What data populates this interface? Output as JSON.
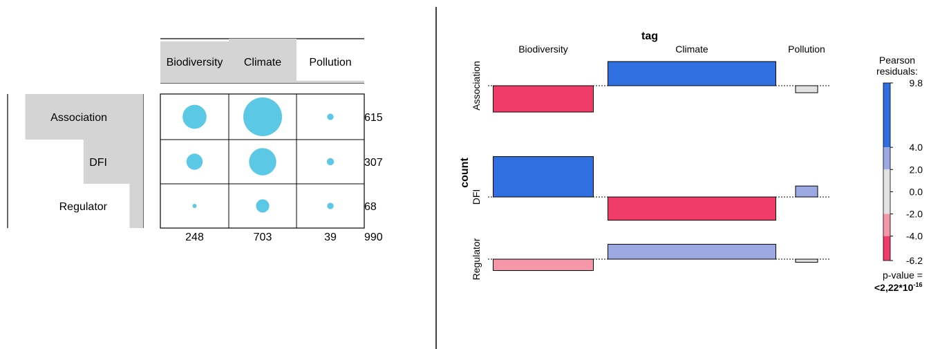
{
  "chart_data": [
    {
      "type": "table",
      "subtype": "balloon-plot",
      "columns": [
        "Biodiversity",
        "Climate",
        "Pollution"
      ],
      "rows": [
        "Association",
        "DFI",
        "Regulator"
      ],
      "counts": [
        [
          167,
          436,
          12
        ],
        [
          76,
          216,
          15
        ],
        [
          5,
          51,
          12
        ]
      ],
      "row_totals": [
        "615",
        "307",
        "68"
      ],
      "col_totals": [
        "248",
        "703",
        "39"
      ],
      "grand_total": "990",
      "column_header_bars": [
        0.94,
        1.0,
        0.05
      ],
      "row_header_bars": [
        0.87,
        0.44,
        0.1
      ],
      "balloon_color": "#5bc8e6"
    },
    {
      "type": "bar",
      "subtype": "association-plot",
      "title": "tag",
      "ylabel": "count",
      "columns": [
        "Biodiversity",
        "Climate",
        "Pollution"
      ],
      "rows": [
        "Association",
        "DFI",
        "Regulator"
      ],
      "residuals": [
        [
          -6.0,
          5.5,
          -1.6
        ],
        [
          9.2,
          -5.3,
          2.5
        ],
        [
          -2.6,
          3.4,
          -0.7
        ]
      ],
      "legend": {
        "title": "Pearson residuals:",
        "ticks": [
          "9.8",
          "4.0",
          "2.0",
          "0.0",
          "-2.0",
          "-4.0",
          "-6.2"
        ],
        "range": [
          -6.2,
          9.8
        ],
        "bands": [
          {
            "from": 4.0,
            "to": 9.8,
            "color": "#2f6fe0"
          },
          {
            "from": 2.0,
            "to": 4.0,
            "color": "#9ba8e2"
          },
          {
            "from": -2.0,
            "to": 2.0,
            "color": "#e2e2e2"
          },
          {
            "from": -4.0,
            "to": -2.0,
            "color": "#f597a8"
          },
          {
            "from": -6.2,
            "to": -4.0,
            "color": "#f03c68"
          }
        ],
        "pvalue_label": "p-value =",
        "pvalue_base": "<2,22*10",
        "pvalue_exp": "-16"
      }
    }
  ]
}
